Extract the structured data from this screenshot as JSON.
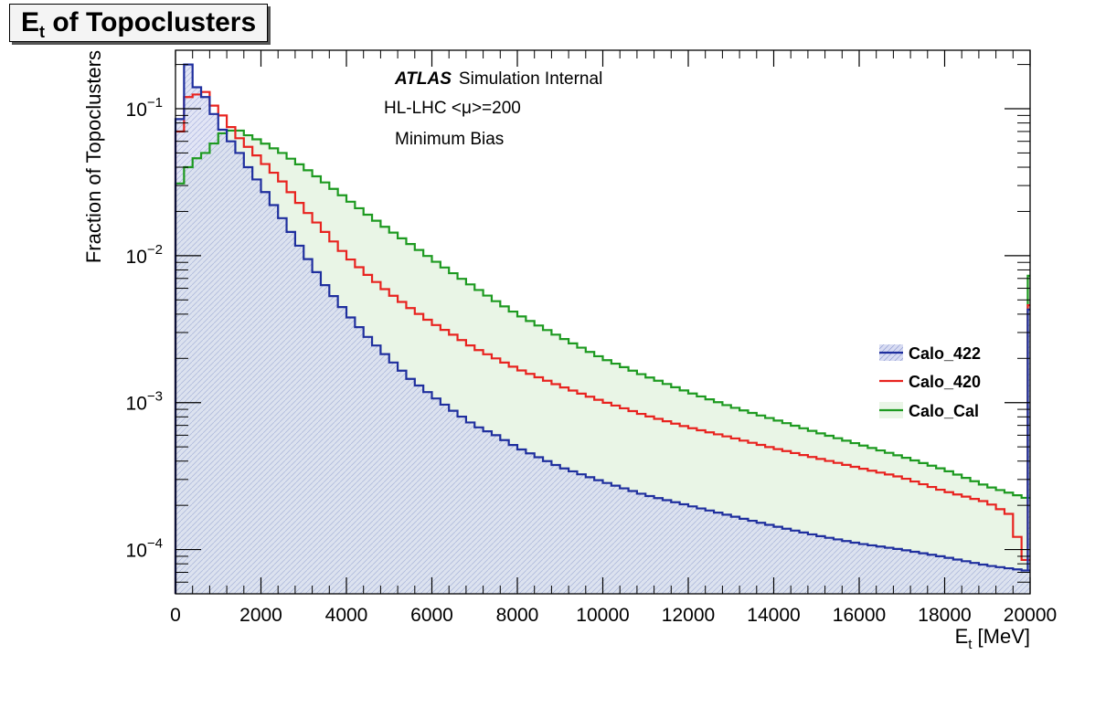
{
  "chart_data": {
    "type": "histogram",
    "title_main": "E",
    "title_sub": "t",
    "title_rest": " of Topoclusters",
    "xlabel_main": "E",
    "xlabel_sub": "t",
    "xlabel_rest": " [MeV]",
    "ylabel": "Fraction of Topoclusters",
    "xlim": [
      0,
      20000
    ],
    "ylim": [
      5e-05,
      0.25
    ],
    "log_y": true,
    "bin_width": 200,
    "x_ticks": [
      "0",
      "2000",
      "4000",
      "6000",
      "8000",
      "10000",
      "12000",
      "14000",
      "16000",
      "18000",
      "20000"
    ],
    "y_ticks": [
      {
        "value": 0.1,
        "base": "10",
        "exp": "−1"
      },
      {
        "value": 0.01,
        "base": "10",
        "exp": "−2"
      },
      {
        "value": 0.001,
        "base": "10",
        "exp": "−3"
      },
      {
        "value": 0.0001,
        "base": "10",
        "exp": "−4"
      }
    ],
    "annotations": {
      "atlas": "ATLAS",
      "atlas_rest": "Simulation Internal",
      "line2": "HL-LHC <μ>=200",
      "line3": "Minimum Bias"
    },
    "legend": {
      "placement": "right"
    },
    "series": [
      {
        "name": "Calo_422",
        "color": "#1f2f9e",
        "fill": "#d8dcf2",
        "anchors": [
          [
            100,
            0.085
          ],
          [
            300,
            0.2
          ],
          [
            500,
            0.14
          ],
          [
            700,
            0.12
          ],
          [
            900,
            0.092
          ],
          [
            1100,
            0.072
          ],
          [
            1300,
            0.06
          ],
          [
            1500,
            0.05
          ],
          [
            1700,
            0.04
          ],
          [
            2000,
            0.03
          ],
          [
            2500,
            0.018
          ],
          [
            3000,
            0.0105
          ],
          [
            3500,
            0.0063
          ],
          [
            4000,
            0.0041
          ],
          [
            4500,
            0.0028
          ],
          [
            5000,
            0.002
          ],
          [
            5500,
            0.00145
          ],
          [
            6000,
            0.00112
          ],
          [
            6500,
            0.00088
          ],
          [
            7000,
            0.0007
          ],
          [
            7500,
            0.0006
          ],
          [
            8000,
            0.000495
          ],
          [
            9000,
            0.000365
          ],
          [
            10000,
            0.00029
          ],
          [
            11000,
            0.000235
          ],
          [
            12000,
            0.0002
          ],
          [
            13000,
            0.00017
          ],
          [
            14000,
            0.000145
          ],
          [
            15000,
            0.000125
          ],
          [
            16000,
            0.00011
          ],
          [
            17000,
            0.0001
          ],
          [
            18000,
            8.9e-05
          ],
          [
            19000,
            7.8e-05
          ],
          [
            19900,
            7.2e-05
          ]
        ],
        "overflow": 0.0043
      },
      {
        "name": "Calo_420",
        "color": "#e8231f",
        "fill": "none",
        "anchors": [
          [
            100,
            0.07
          ],
          [
            300,
            0.12
          ],
          [
            500,
            0.125
          ],
          [
            700,
            0.13
          ],
          [
            900,
            0.105
          ],
          [
            1100,
            0.09
          ],
          [
            1300,
            0.075
          ],
          [
            1500,
            0.063
          ],
          [
            1700,
            0.055
          ],
          [
            2000,
            0.045
          ],
          [
            2500,
            0.032
          ],
          [
            3000,
            0.021
          ],
          [
            3500,
            0.0145
          ],
          [
            4000,
            0.01
          ],
          [
            4500,
            0.0074
          ],
          [
            5000,
            0.0056
          ],
          [
            5500,
            0.0044
          ],
          [
            6000,
            0.0035
          ],
          [
            6500,
            0.0029
          ],
          [
            7000,
            0.00235
          ],
          [
            7500,
            0.002
          ],
          [
            8000,
            0.0017
          ],
          [
            9000,
            0.0013
          ],
          [
            10000,
            0.00102
          ],
          [
            11000,
            0.00082
          ],
          [
            12000,
            0.00068
          ],
          [
            13000,
            0.00058
          ],
          [
            14000,
            0.00049
          ],
          [
            15000,
            0.00042
          ],
          [
            16000,
            0.00036
          ],
          [
            17000,
            0.00031
          ],
          [
            18000,
            0.00025
          ],
          [
            19000,
            0.00021
          ],
          [
            19500,
            0.000175
          ],
          [
            19900,
            8.5e-05
          ]
        ],
        "overflow": 0.0046
      },
      {
        "name": "Calo_Cal",
        "color": "#1d9a20",
        "fill": "#e9f5e6",
        "anchors": [
          [
            100,
            0.031
          ],
          [
            300,
            0.04
          ],
          [
            500,
            0.046
          ],
          [
            700,
            0.05
          ],
          [
            900,
            0.058
          ],
          [
            1100,
            0.068
          ],
          [
            1300,
            0.071
          ],
          [
            1500,
            0.071
          ],
          [
            1700,
            0.066
          ],
          [
            2000,
            0.06
          ],
          [
            2500,
            0.05
          ],
          [
            3000,
            0.04
          ],
          [
            3500,
            0.0315
          ],
          [
            4000,
            0.0245
          ],
          [
            4500,
            0.019
          ],
          [
            5000,
            0.015
          ],
          [
            5500,
            0.012
          ],
          [
            6000,
            0.0095
          ],
          [
            6500,
            0.0076
          ],
          [
            7000,
            0.0061
          ],
          [
            7500,
            0.0049
          ],
          [
            8000,
            0.004
          ],
          [
            9000,
            0.0028
          ],
          [
            10000,
            0.002
          ],
          [
            11000,
            0.00152
          ],
          [
            12000,
            0.00118
          ],
          [
            13000,
            0.00094
          ],
          [
            14000,
            0.00077
          ],
          [
            15000,
            0.00063
          ],
          [
            16000,
            0.00052
          ],
          [
            17000,
            0.00043
          ],
          [
            18000,
            0.00035
          ],
          [
            19000,
            0.00027
          ],
          [
            19900,
            0.000225
          ]
        ],
        "overflow": 0.0073
      }
    ]
  }
}
